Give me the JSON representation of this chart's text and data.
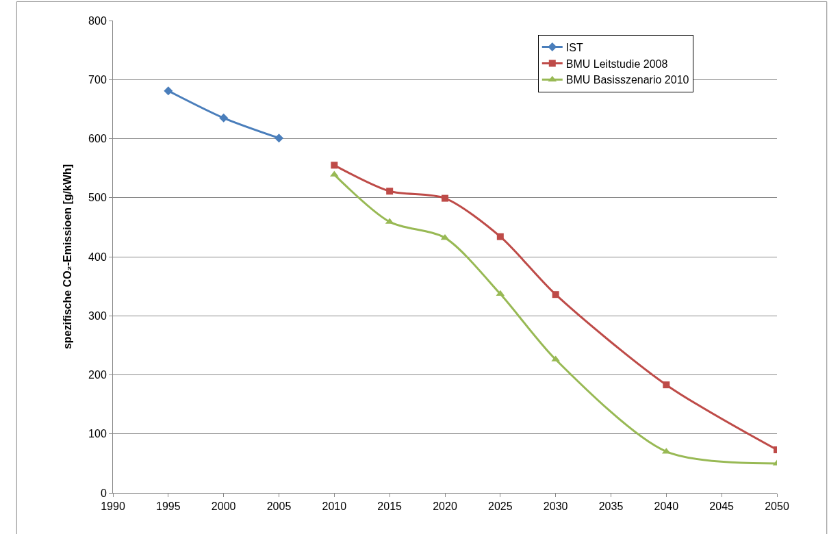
{
  "chart_data": {
    "type": "line",
    "ylabel": "spezifische CO₂-Emissioen [g/kWh]",
    "xlim": [
      1990,
      2050
    ],
    "xticks": [
      1990,
      1995,
      2000,
      2005,
      2010,
      2015,
      2020,
      2025,
      2030,
      2035,
      2040,
      2045,
      2050
    ],
    "ylim": [
      0,
      800
    ],
    "yticks": [
      0,
      100,
      200,
      300,
      400,
      500,
      600,
      700,
      800
    ],
    "grid": "y",
    "legend": "top right",
    "line_style": "solid",
    "series": [
      {
        "name": "IST",
        "color": "#4a7ebb",
        "marker": "diamond",
        "x": [
          1995,
          2000,
          2005
        ],
        "values": [
          681,
          635,
          601
        ]
      },
      {
        "name": "BMU Leitstudie 2008",
        "color": "#be4b48",
        "marker": "square",
        "x": [
          2010,
          2015,
          2020,
          2025,
          2030,
          2040,
          2050
        ],
        "values": [
          555,
          511,
          499,
          434,
          336,
          183,
          73
        ]
      },
      {
        "name": "BMU Basisszenario 2010",
        "color": "#98b954",
        "marker": "triangle",
        "x": [
          2010,
          2015,
          2020,
          2025,
          2030,
          2040,
          2050
        ],
        "values": [
          539,
          459,
          432,
          337,
          226,
          70,
          50
        ]
      }
    ]
  }
}
